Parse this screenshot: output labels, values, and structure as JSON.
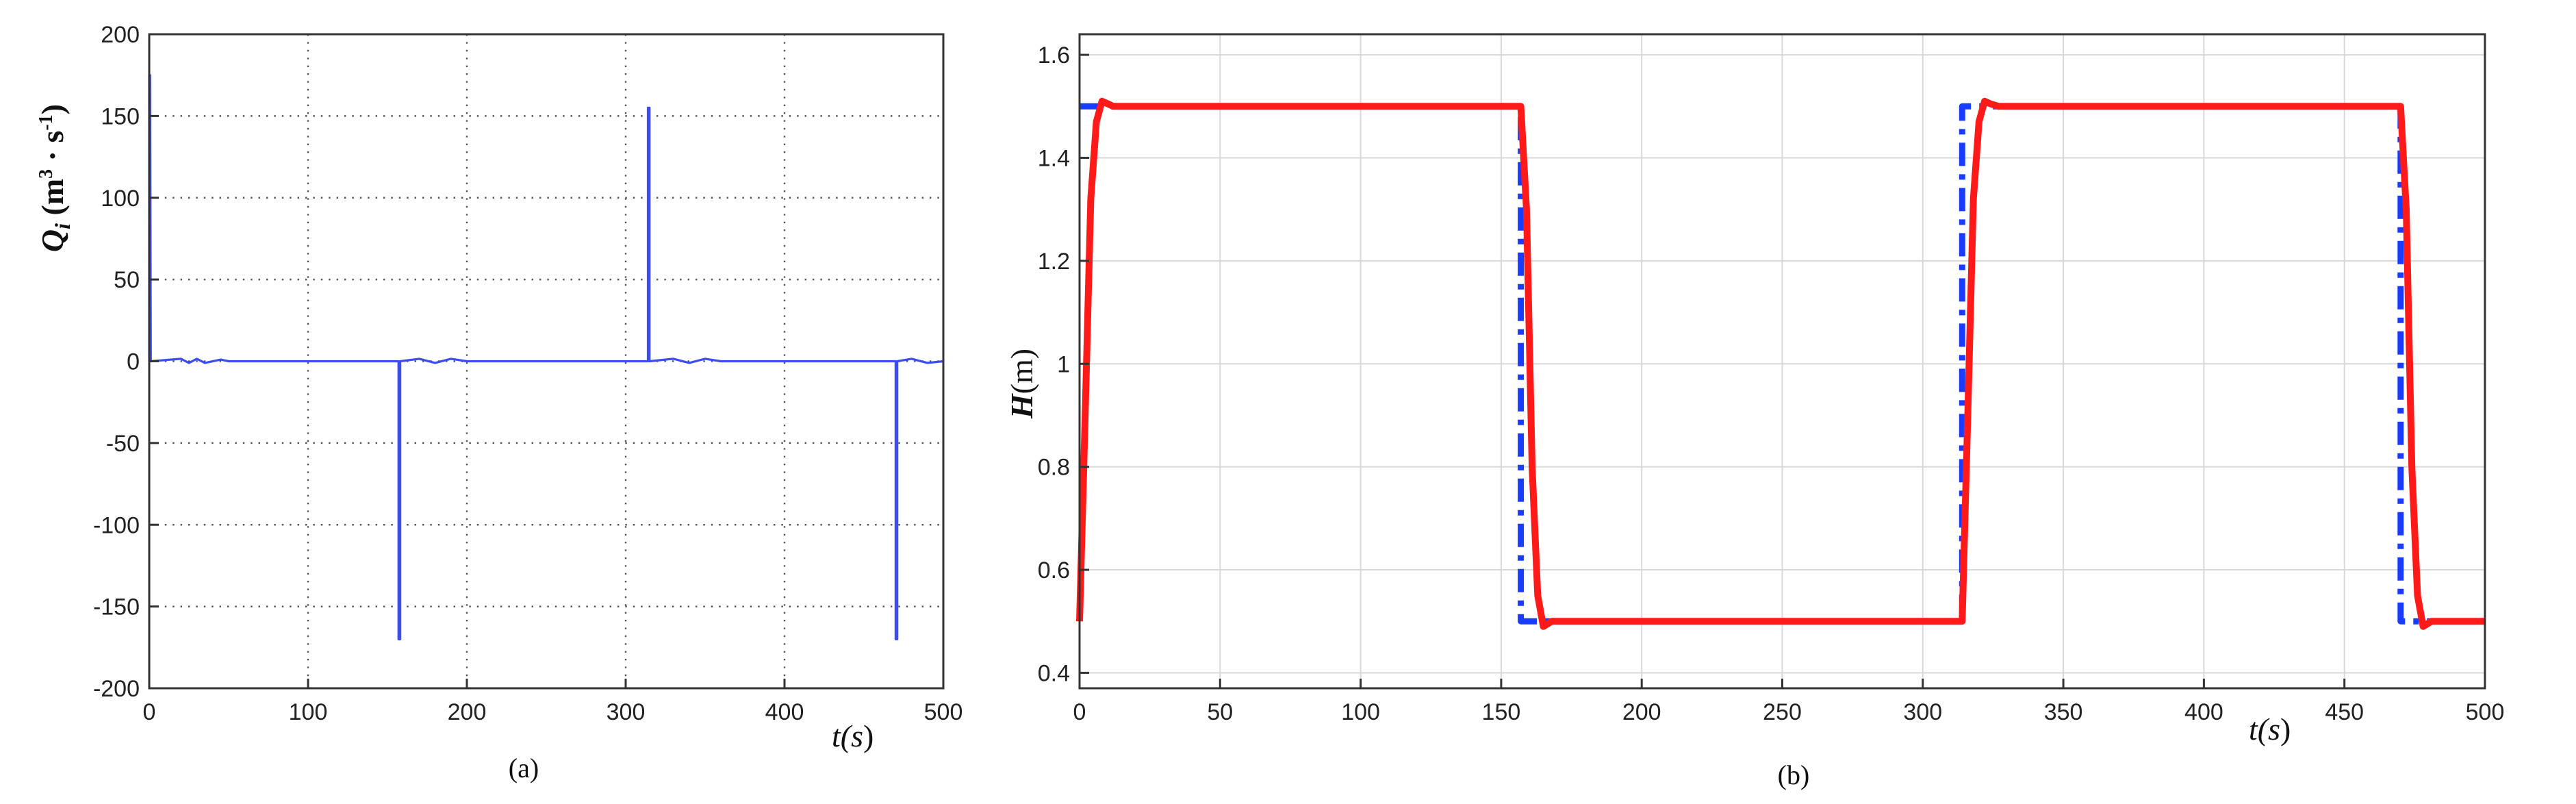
{
  "chart_data": [
    {
      "id": "a",
      "type": "line",
      "caption": "(a)",
      "ylabel": {
        "main": "Q",
        "sub": "i",
        "unit_pre": " (m",
        "unit_sup1": "3",
        "unit_mid": " · s",
        "unit_sup2": "-1",
        "unit_post": ")"
      },
      "xlabel": {
        "pre": "t(",
        "var": "s",
        "post": ")"
      },
      "xlim": [
        0,
        500
      ],
      "ylim": [
        -200,
        200
      ],
      "xticks": [
        0,
        100,
        200,
        300,
        400,
        500
      ],
      "yticks": [
        -200,
        -150,
        -100,
        -50,
        0,
        50,
        100,
        150,
        200
      ],
      "grid": "dotted",
      "series": [
        {
          "color": "#3b4cf0",
          "x": [
            0,
            0,
            0.5,
            1,
            20,
            25,
            30,
            35,
            45,
            50,
            100,
            157,
            157,
            158,
            158,
            170,
            180,
            190,
            200,
            314,
            314,
            315,
            315,
            330,
            340,
            350,
            360,
            470,
            470,
            471,
            471,
            480,
            490,
            500
          ],
          "y": [
            0,
            175,
            175,
            0,
            1.5,
            -1,
            1.5,
            -1,
            1,
            0,
            0,
            0,
            -170,
            -170,
            0,
            1.5,
            -1,
            1.5,
            0,
            0,
            155,
            155,
            0,
            1.5,
            -1,
            1.5,
            0,
            0,
            -170,
            -170,
            0,
            1.5,
            -1,
            0
          ]
        }
      ]
    },
    {
      "id": "b",
      "type": "line",
      "caption": "(b)",
      "ylabel": {
        "var": "H",
        "unit": "(m)"
      },
      "xlabel": {
        "pre": "t(",
        "var": "s",
        "post": ")"
      },
      "xlim": [
        0,
        500
      ],
      "ylim": [
        0.37,
        1.64
      ],
      "xticks": [
        0,
        50,
        100,
        150,
        200,
        250,
        300,
        350,
        400,
        450,
        500
      ],
      "yticks": [
        0.4,
        0.6,
        0.8,
        1,
        1.2,
        1.4,
        1.6
      ],
      "ytick_labels": [
        "0.4",
        "0.6",
        "0.8",
        "1",
        "1.2",
        "1.4",
        "1.6"
      ],
      "grid": "solid-light",
      "series": [
        {
          "style": "dash-dot",
          "color": "#1a3cff",
          "x": [
            0,
            157,
            157,
            314,
            314,
            470,
            470,
            500
          ],
          "y": [
            1.5,
            1.5,
            0.5,
            0.5,
            1.5,
            1.5,
            0.5,
            0.5
          ]
        },
        {
          "style": "solid",
          "color": "#ff1a1a",
          "x": [
            0,
            2,
            4,
            6,
            8,
            10,
            12,
            15,
            157,
            159,
            161,
            163,
            165,
            168,
            170,
            314,
            316,
            318,
            320,
            322,
            324,
            327,
            470,
            472,
            474,
            476,
            478,
            481,
            485,
            500
          ],
          "y": [
            0.5,
            0.9,
            1.32,
            1.47,
            1.51,
            1.505,
            1.5,
            1.5,
            1.5,
            1.3,
            0.8,
            0.55,
            0.49,
            0.5,
            0.5,
            0.5,
            0.9,
            1.32,
            1.47,
            1.51,
            1.505,
            1.5,
            1.5,
            1.3,
            0.8,
            0.55,
            0.49,
            0.5,
            0.5,
            0.5
          ]
        }
      ]
    }
  ]
}
